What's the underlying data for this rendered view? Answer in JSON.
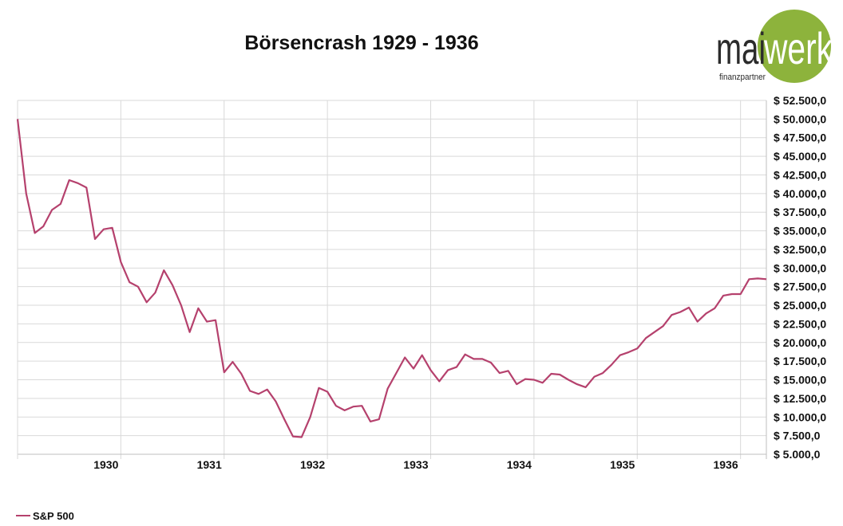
{
  "logo": {
    "text_left": "mai",
    "text_right": "werk",
    "tagline": "finanzpartner",
    "accent": "#8db33c"
  },
  "chart_data": {
    "type": "line",
    "title": "Börsencrash 1929 - 1936",
    "xlabel": "",
    "ylabel": "",
    "x_ticks": [
      "1930",
      "1931",
      "1932",
      "1933",
      "1934",
      "1935",
      "1936"
    ],
    "x_start": "1929-01",
    "interval": "month",
    "ylim": [
      5000,
      52500
    ],
    "y_ticks": [
      5000,
      7500,
      10000,
      12500,
      15000,
      17500,
      20000,
      22500,
      25000,
      27500,
      30000,
      32500,
      35000,
      37500,
      40000,
      42500,
      45000,
      47500,
      50000,
      52500
    ],
    "y_tick_labels": [
      "$ 5.000,0",
      "$ 7.500,0",
      "$ 10.000,0",
      "$ 12.500,0",
      "$ 15.000,0",
      "$ 17.500,0",
      "$ 20.000,0",
      "$ 22.500,0",
      "$ 25.000,0",
      "$ 27.500,0",
      "$ 30.000,0",
      "$ 32.500,0",
      "$ 35.000,0",
      "$ 37.500,0",
      "$ 40.000,0",
      "$ 42.500,0",
      "$ 45.000,0",
      "$ 47.500,0",
      "$ 50.000,0",
      "$ 52.500,0"
    ],
    "grid": true,
    "legend_position": "bottom-left",
    "series": [
      {
        "name": "S&P 500",
        "color": "#b5416d",
        "values": [
          50000,
          40000,
          34700,
          35600,
          37800,
          38600,
          41800,
          41400,
          40800,
          33900,
          35200,
          35400,
          30800,
          28100,
          27500,
          25400,
          26700,
          29700,
          27700,
          25000,
          21400,
          24600,
          22800,
          23000,
          16000,
          17400,
          15800,
          13500,
          13100,
          13700,
          12100,
          9700,
          7400,
          7300,
          10000,
          13900,
          13400,
          11500,
          10900,
          11400,
          11500,
          9400,
          9700,
          13800,
          15900,
          18000,
          16500,
          18300,
          16300,
          14800,
          16300,
          16700,
          18400,
          17800,
          17800,
          17300,
          15900,
          16200,
          14400,
          15100,
          15000,
          14600,
          15800,
          15700,
          15000,
          14400,
          14000,
          15400,
          15900,
          17000,
          18300,
          18700,
          19200,
          20600,
          21400,
          22200,
          23700,
          24100,
          24700,
          22800,
          23900,
          24600,
          26300,
          26500,
          26500,
          28500,
          28600,
          28500
        ]
      }
    ]
  }
}
